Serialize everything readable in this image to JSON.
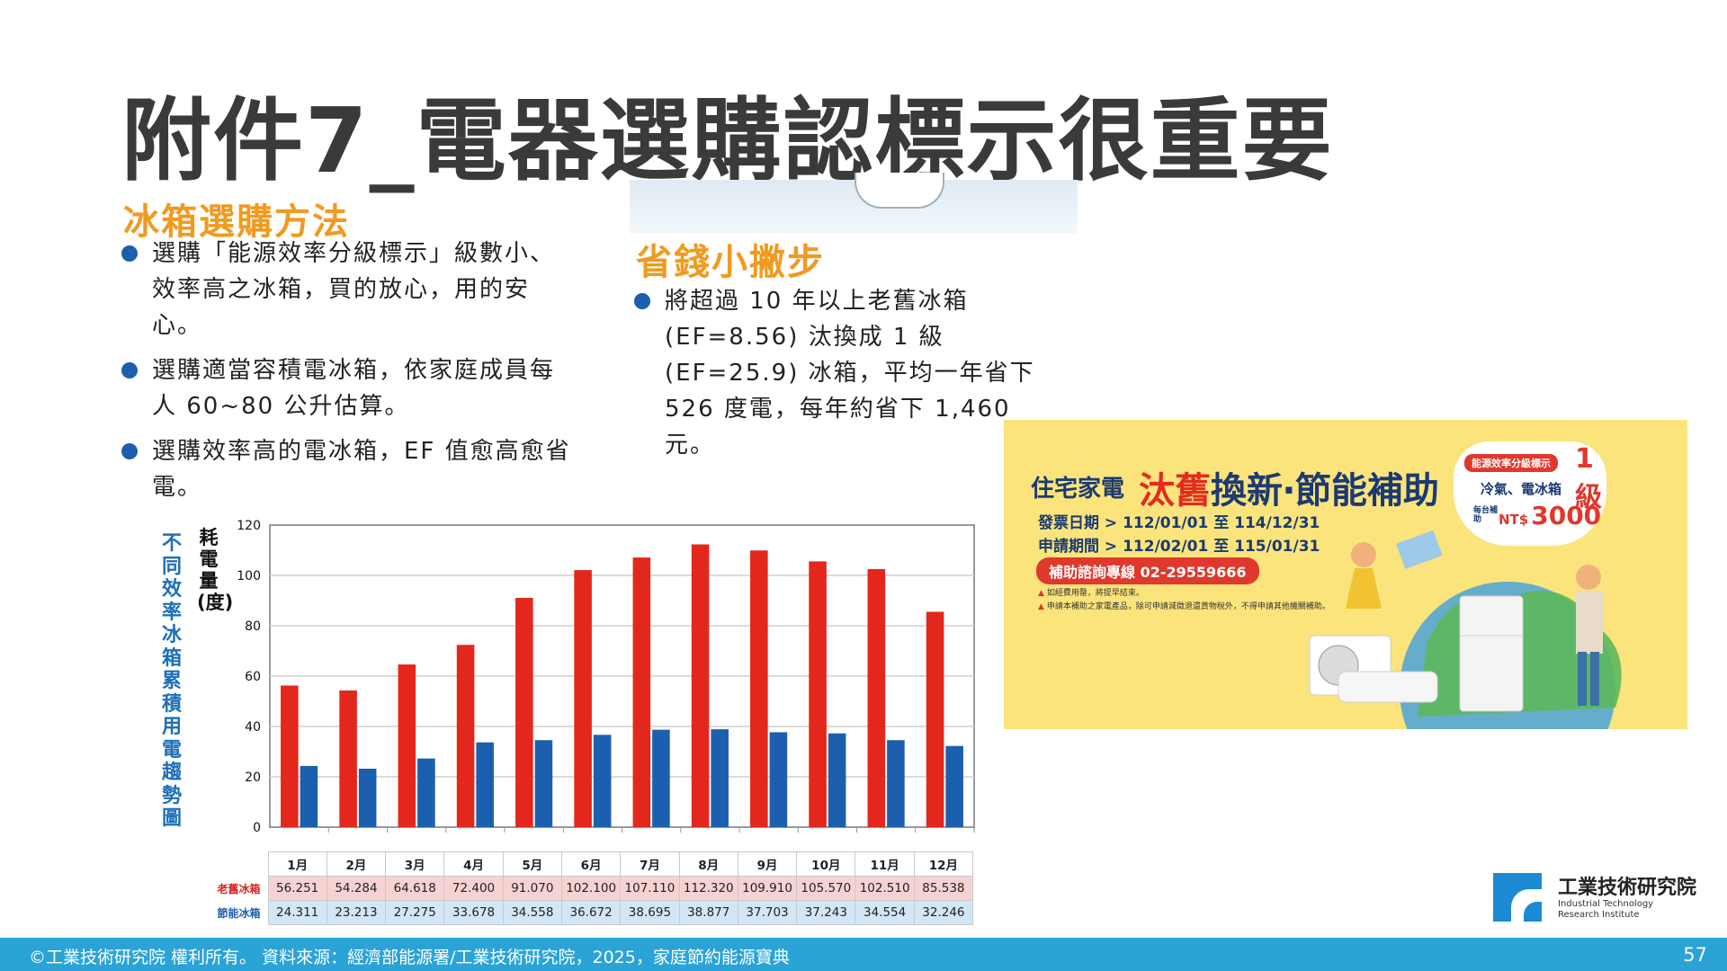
{
  "title": "附件7_電器選購認標示很重要",
  "fridge_section": {
    "heading": "冰箱選購方法",
    "bullets": [
      "選購「能源效率分級標示」級數小、效率高之冰箱，買的放心，用的安心。",
      "選購適當容積電冰箱，依家庭成員每人 60~80 公升估算。",
      "選購效率高的電冰箱，EF 值愈高愈省電。"
    ]
  },
  "save_section": {
    "heading": "省錢小撇步",
    "bullets": [
      "將超過 10 年以上老舊冰箱 (EF=8.56) 汰換成 1 級 (EF=25.9) 冰箱，平均一年省下 526 度電，每年約省下 1,460 元。"
    ]
  },
  "chart_title_vertical": "不同效率冰箱累積用電趨勢圖",
  "chart_data": {
    "type": "bar",
    "categories": [
      "1月",
      "2月",
      "3月",
      "4月",
      "5月",
      "6月",
      "7月",
      "8月",
      "9月",
      "10月",
      "11月",
      "12月"
    ],
    "ylabel": "耗電量(度)",
    "ylim": [
      0,
      120
    ],
    "yticks": [
      "0",
      "20",
      "40",
      "60",
      "80",
      "100",
      "120"
    ],
    "grid": true,
    "series": [
      {
        "name": "老舊冰箱",
        "color": "#e3271c",
        "values": [
          56.251,
          54.284,
          64.618,
          72.4,
          91.07,
          102.1,
          107.11,
          112.32,
          109.91,
          105.57,
          102.51,
          85.538
        ],
        "labels": [
          "56.251",
          "54.284",
          "64.618",
          "72.400",
          "91.070",
          "102.100",
          "107.110",
          "112.320",
          "109.910",
          "105.570",
          "102.510",
          "85.538"
        ]
      },
      {
        "name": "節能冰箱",
        "color": "#1c5fae",
        "values": [
          24.311,
          23.213,
          27.275,
          33.678,
          34.558,
          36.672,
          38.695,
          38.877,
          37.703,
          37.243,
          34.554,
          32.246
        ],
        "labels": [
          "24.311",
          "23.213",
          "27.275",
          "33.678",
          "34.558",
          "36.672",
          "38.695",
          "38.877",
          "37.703",
          "37.243",
          "34.554",
          "32.246"
        ]
      }
    ]
  },
  "banner": {
    "prefix": "住宅家電",
    "headline_red": "汰舊",
    "headline_rest": "換新‧節能補助",
    "invoice_date": "發票日期 > 112/01/01 至 114/12/31",
    "apply_date": "申請期間 > 112/02/01 至 115/01/31",
    "hotline": "補助諮詢專線 02-29559666",
    "note1": "如經費用罄，將提早結束。",
    "note2": "申請本補助之家電產品，除可申請減徵退還貨物稅外，不得申請其他機關補助。",
    "badge_label": "能源效率分級標示",
    "badge_level": "1級",
    "badge_items": "冷氣、電冰箱",
    "badge_small": "每台補助",
    "badge_currency": "NT$",
    "badge_amount": "3000"
  },
  "logo": {
    "name_zh": "工業技術研究院",
    "name_en_1": "Industrial Technology",
    "name_en_2": "Research Institute"
  },
  "footer": {
    "text": "©工業技術研究院  權利所有。    資料來源：經濟部能源署/工業技術研究院，2025，家庭節約能源寶典",
    "page": "57"
  },
  "colors": {
    "footer_bar": "#2aa3d7",
    "heading_orange": "#f09a1f",
    "bullet_blue": "#1c5fae",
    "old_fridge_red": "#e3271c",
    "efficient_blue": "#1c5fae",
    "banner_yellow": "#fbe47c"
  }
}
